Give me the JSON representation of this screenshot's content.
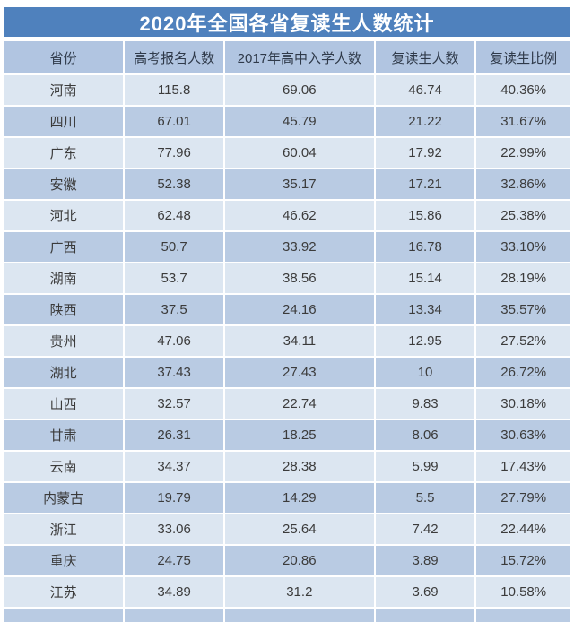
{
  "title": "2020年全国各省复读生人数统计",
  "colors": {
    "title_bar": "#4f81bd",
    "header_bg": "#b1c5e1",
    "row_light": "#dce6f1",
    "row_dark": "#b9cbe3",
    "title_text": "#ffffff",
    "header_text": "#2f3a4a",
    "cell_text": "#3b3b3b"
  },
  "chart_data": {
    "type": "table",
    "title": "2020年全国各省复读生人数统计",
    "columns": [
      "省份",
      "高考报名人数",
      "2017年高中入学人数",
      "复读生人数",
      "复读生比例"
    ],
    "rows": [
      [
        "河南",
        "115.8",
        "69.06",
        "46.74",
        "40.36%"
      ],
      [
        "四川",
        "67.01",
        "45.79",
        "21.22",
        "31.67%"
      ],
      [
        "广东",
        "77.96",
        "60.04",
        "17.92",
        "22.99%"
      ],
      [
        "安徽",
        "52.38",
        "35.17",
        "17.21",
        "32.86%"
      ],
      [
        "河北",
        "62.48",
        "46.62",
        "15.86",
        "25.38%"
      ],
      [
        "广西",
        "50.7",
        "33.92",
        "16.78",
        "33.10%"
      ],
      [
        "湖南",
        "53.7",
        "38.56",
        "15.14",
        "28.19%"
      ],
      [
        "陕西",
        "37.5",
        "24.16",
        "13.34",
        "35.57%"
      ],
      [
        "贵州",
        "47.06",
        "34.11",
        "12.95",
        "27.52%"
      ],
      [
        "湖北",
        "37.43",
        "27.43",
        "10",
        "26.72%"
      ],
      [
        "山西",
        "32.57",
        "22.74",
        "9.83",
        "30.18%"
      ],
      [
        "甘肃",
        "26.31",
        "18.25",
        "8.06",
        "30.63%"
      ],
      [
        "云南",
        "34.37",
        "28.38",
        "5.99",
        "17.43%"
      ],
      [
        "内蒙古",
        "19.79",
        "14.29",
        "5.5",
        "27.79%"
      ],
      [
        "浙江",
        "33.06",
        "25.64",
        "7.42",
        "22.44%"
      ],
      [
        "重庆",
        "24.75",
        "20.86",
        "3.89",
        "15.72%"
      ],
      [
        "江苏",
        "34.89",
        "31.2",
        "3.69",
        "10.58%"
      ]
    ]
  }
}
